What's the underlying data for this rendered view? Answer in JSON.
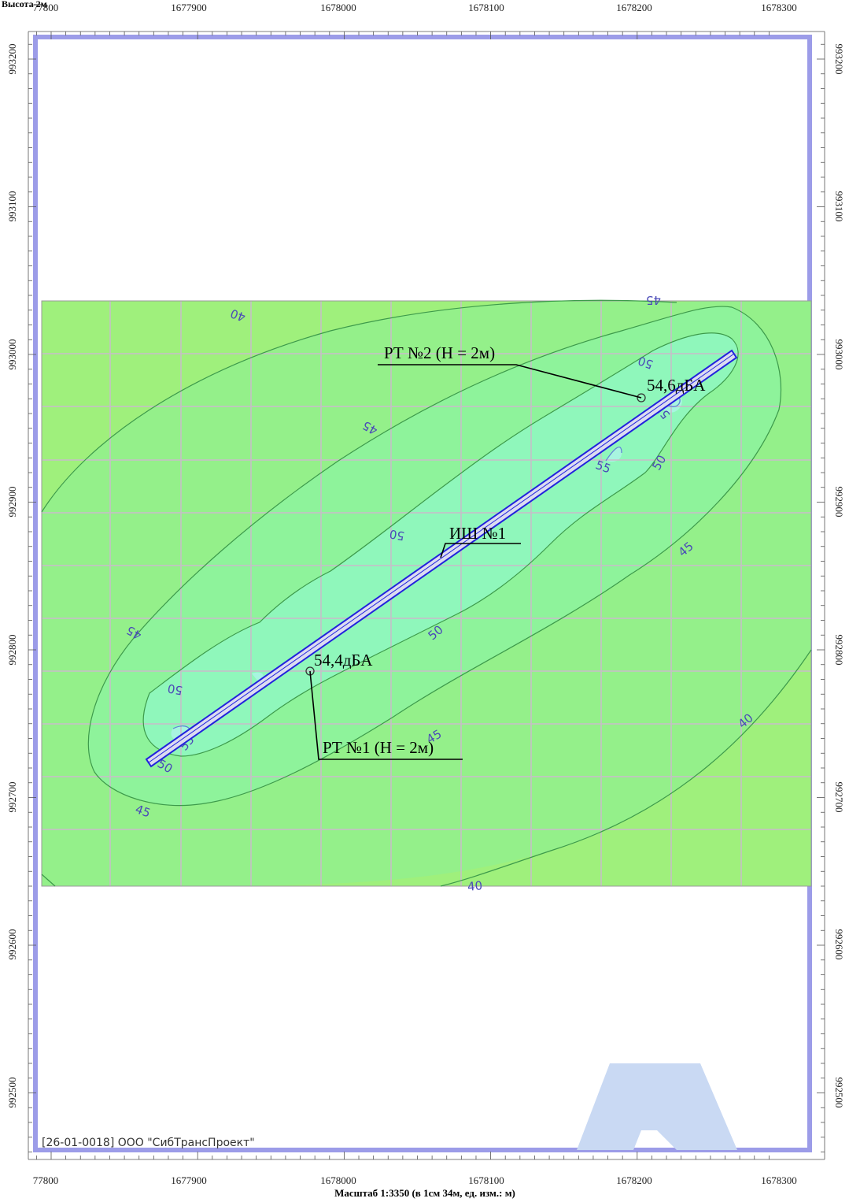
{
  "header": {
    "note": "Высота 2м"
  },
  "scale_note": "Масштаб 1:3350 (в 1см 34м, ед. изм.: м)",
  "company": "[26-01-0018] ООО \"СибТрансПроект\"",
  "axes": {
    "x_ticks": [
      "77800",
      "1677900",
      "1678000",
      "1678100",
      "1678200",
      "1678300"
    ],
    "y_ticks": [
      "993200",
      "993100",
      "993000",
      "992900",
      "992800",
      "992700",
      "992600",
      "992500"
    ]
  },
  "contour_labels": [
    "40",
    "45",
    "45",
    "50",
    "55",
    "55",
    "50",
    "45",
    "45",
    "50",
    "50",
    "50",
    "55",
    "50",
    "45",
    "45",
    "40",
    "40",
    "50"
  ],
  "source": {
    "label": "ИШ №1"
  },
  "receivers": [
    {
      "label": "РТ №2 (Н = 2м)",
      "value": "54,6дБА"
    },
    {
      "label": "РТ №1 (Н = 2м)",
      "value": "54,4дБА"
    }
  ],
  "colors": {
    "frame": "#9c9ce8",
    "zone40": "#9ff07c",
    "zone45": "#8ef39b",
    "zone50": "#8ff7bb",
    "zone55": "#a8f5e0",
    "grid": "#c9bcc9",
    "source": "#2222dd",
    "contour": "#3d9a4b",
    "watermark": "#c9d9f3"
  }
}
